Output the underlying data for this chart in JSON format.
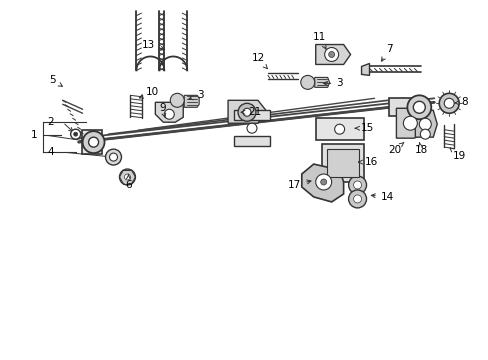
{
  "background_color": "#ffffff",
  "line_color": "#333333",
  "text_color": "#000000",
  "fig_width": 4.89,
  "fig_height": 3.6,
  "dpi": 100,
  "label_fontsize": 7.5
}
